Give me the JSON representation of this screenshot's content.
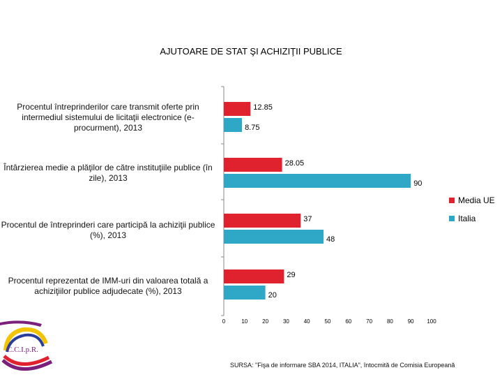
{
  "chart_data": {
    "type": "bar",
    "orientation": "horizontal",
    "title": "AJUTOARE DE STAT ŞI ACHIZIŢII PUBLICE",
    "categories": [
      "Procentul întreprinderilor care transmit oferte prin intermediul sistemului de licitaţii electronice (e-procurment), 2013",
      "Întârzierea medie  a plăţilor de către instituţiile publice (în zile), 2013",
      "Procentul de întreprinderi care participă la achiziţii publice (%), 2013",
      "Procentul reprezentat de IMM-uri din valoarea totală a achiziţiilor publice adjudecate (%), 2013"
    ],
    "series": [
      {
        "name": "Media UE",
        "color": "#e0212e",
        "values": [
          12.85,
          28.05,
          37,
          29
        ],
        "labels": [
          "12.85",
          "28.05",
          "37",
          "29"
        ]
      },
      {
        "name": "Italia",
        "color": "#2fa7c7",
        "values": [
          8.75,
          90,
          48,
          20
        ],
        "labels": [
          "8.75",
          "90",
          "48",
          "20"
        ]
      }
    ],
    "xlim": [
      0,
      100
    ],
    "xticks": [
      "0",
      "10",
      "20",
      "30",
      "40",
      "50",
      "60",
      "70",
      "80",
      "90",
      "100"
    ],
    "legend_position": "right"
  },
  "source": "SURSA: \"Fişa de  informare SBA 2014, ITALIA\", întocmită de Comisia Europeană",
  "logo_text": "C.C.I.p.R."
}
